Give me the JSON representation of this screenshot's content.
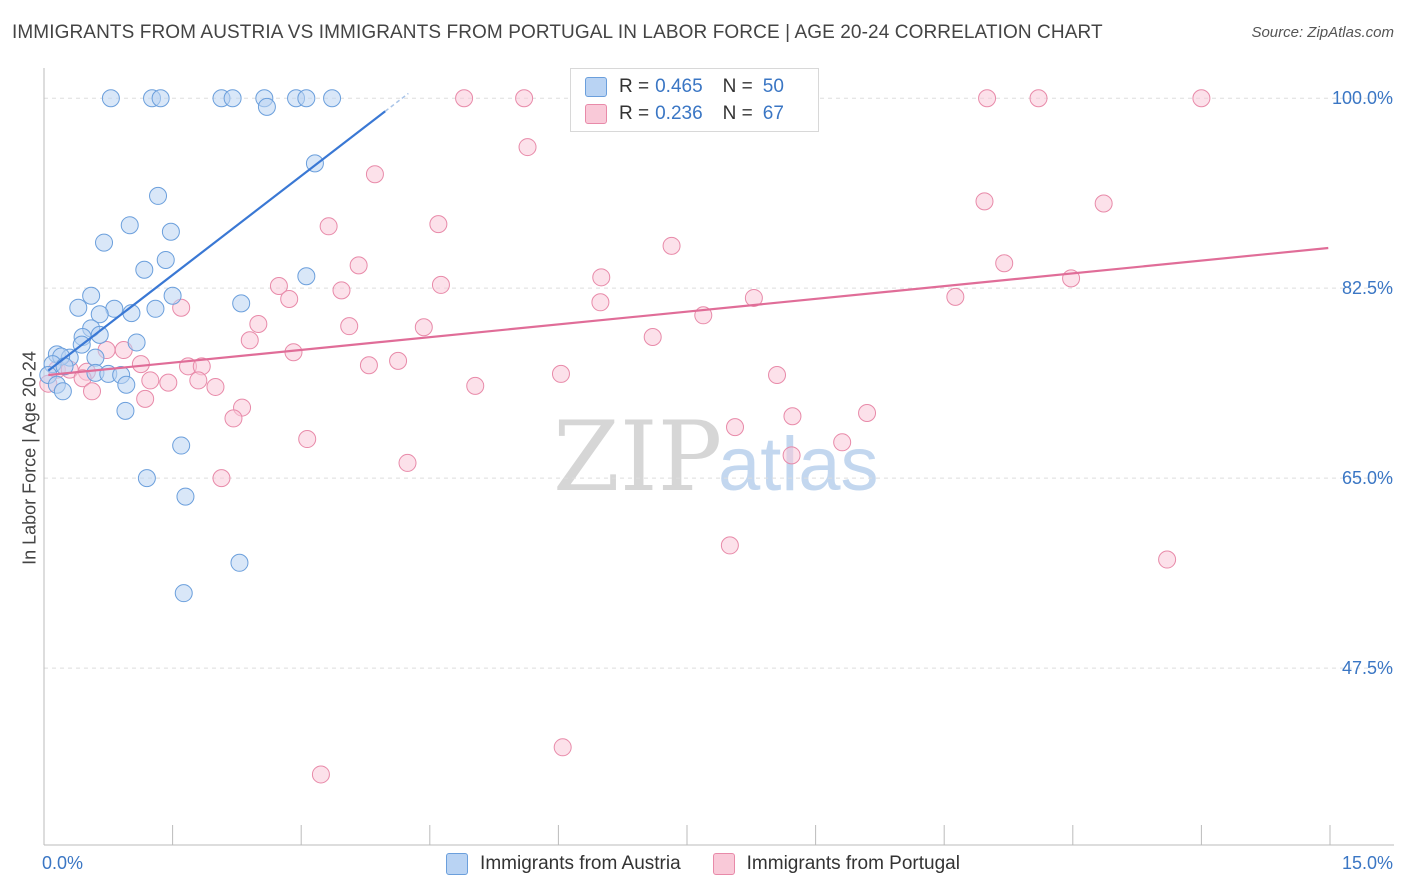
{
  "title": "IMMIGRANTS FROM AUSTRIA VS IMMIGRANTS FROM PORTUGAL IN LABOR FORCE | AGE 20-24 CORRELATION CHART",
  "source": "Source: ZipAtlas.com",
  "watermark": {
    "zip": "ZIP",
    "atlas": "atlas"
  },
  "legend_top": {
    "rows": [
      {
        "r_label": "R =",
        "r_value": "0.465",
        "n_label": "N =",
        "n_value": "50"
      },
      {
        "r_label": "R =",
        "r_value": "0.236",
        "n_label": "N =",
        "n_value": "67"
      }
    ]
  },
  "legend_bottom": [
    {
      "label": "Immigrants from Austria"
    },
    {
      "label": "Immigrants from Portugal"
    }
  ],
  "chart_data": {
    "type": "scatter",
    "title": "IMMIGRANTS FROM AUSTRIA VS IMMIGRANTS FROM PORTUGAL IN LABOR FORCE | AGE 20-24 CORRELATION CHART",
    "xlabel": "",
    "ylabel": "In Labor Force | Age 20-24",
    "xlim": [
      0,
      15
    ],
    "ylim": [
      31.2,
      102.6
    ],
    "x_tick_labels": [
      "0.0%",
      "15.0%"
    ],
    "y_ticks": [
      47.5,
      65.0,
      82.5,
      100.0
    ],
    "y_tick_labels": [
      "47.5%",
      "65.0%",
      "82.5%",
      "100.0%"
    ],
    "colors": {
      "austria": "#6b9fdc",
      "austria_fill": "#b9d3f3",
      "portugal": "#e88aa9",
      "portugal_fill": "#f9c9d8",
      "austria_line": "#3a78d4",
      "portugal_line": "#e06d98"
    },
    "series": [
      {
        "name": "Immigrants from Austria",
        "trend": {
          "x1": 0.05,
          "y1": 74.9,
          "x2": 3.98,
          "y2": 98.8,
          "x_dash_end": 4.25
        },
        "points": [
          [
            0.78,
            100.0
          ],
          [
            1.26,
            100.0
          ],
          [
            1.36,
            100.0
          ],
          [
            2.07,
            100.0
          ],
          [
            2.2,
            100.0
          ],
          [
            2.57,
            100.0
          ],
          [
            2.94,
            100.0
          ],
          [
            3.06,
            100.0
          ],
          [
            3.36,
            100.0
          ],
          [
            2.6,
            99.2
          ],
          [
            3.16,
            94.0
          ],
          [
            1.33,
            91.0
          ],
          [
            1.0,
            88.3
          ],
          [
            1.48,
            87.7
          ],
          [
            0.7,
            86.7
          ],
          [
            1.42,
            85.1
          ],
          [
            1.17,
            84.2
          ],
          [
            3.06,
            83.6
          ],
          [
            0.55,
            81.8
          ],
          [
            1.5,
            81.8
          ],
          [
            0.4,
            80.7
          ],
          [
            0.82,
            80.6
          ],
          [
            1.3,
            80.6
          ],
          [
            2.3,
            81.1
          ],
          [
            0.65,
            80.1
          ],
          [
            1.02,
            80.2
          ],
          [
            0.55,
            78.8
          ],
          [
            0.65,
            78.2
          ],
          [
            0.45,
            78.0
          ],
          [
            1.08,
            77.5
          ],
          [
            0.44,
            77.3
          ],
          [
            0.15,
            76.4
          ],
          [
            0.3,
            76.1
          ],
          [
            0.6,
            76.1
          ],
          [
            0.2,
            76.2
          ],
          [
            0.1,
            75.5
          ],
          [
            0.24,
            75.3
          ],
          [
            0.6,
            74.7
          ],
          [
            0.75,
            74.6
          ],
          [
            0.9,
            74.5
          ],
          [
            0.05,
            74.5
          ],
          [
            0.15,
            73.6
          ],
          [
            0.96,
            73.6
          ],
          [
            0.22,
            73.0
          ],
          [
            0.95,
            71.2
          ],
          [
            1.6,
            68.0
          ],
          [
            1.2,
            65.0
          ],
          [
            1.65,
            63.3
          ],
          [
            2.28,
            57.2
          ],
          [
            1.63,
            54.4
          ]
        ]
      },
      {
        "name": "Immigrants from Portugal",
        "trend": {
          "x1": 0.05,
          "y1": 74.5,
          "x2": 14.98,
          "y2": 86.2
        },
        "points": [
          [
            4.9,
            100.0
          ],
          [
            5.6,
            100.0
          ],
          [
            6.4,
            100.0
          ],
          [
            11.0,
            100.0
          ],
          [
            11.6,
            100.0
          ],
          [
            13.5,
            100.0
          ],
          [
            5.64,
            95.5
          ],
          [
            3.86,
            93.0
          ],
          [
            10.97,
            90.5
          ],
          [
            12.36,
            90.3
          ],
          [
            3.32,
            88.2
          ],
          [
            4.6,
            88.4
          ],
          [
            7.32,
            86.4
          ],
          [
            3.67,
            84.6
          ],
          [
            11.2,
            84.8
          ],
          [
            11.98,
            83.4
          ],
          [
            6.5,
            83.5
          ],
          [
            4.63,
            82.8
          ],
          [
            2.74,
            82.7
          ],
          [
            3.47,
            82.3
          ],
          [
            2.86,
            81.5
          ],
          [
            6.49,
            81.2
          ],
          [
            8.28,
            81.6
          ],
          [
            10.63,
            81.7
          ],
          [
            1.6,
            80.7
          ],
          [
            7.69,
            80.0
          ],
          [
            2.5,
            79.2
          ],
          [
            3.56,
            79.0
          ],
          [
            4.43,
            78.9
          ],
          [
            7.1,
            78.0
          ],
          [
            2.4,
            77.7
          ],
          [
            0.73,
            76.8
          ],
          [
            0.93,
            76.8
          ],
          [
            2.91,
            76.6
          ],
          [
            1.13,
            75.5
          ],
          [
            1.68,
            75.3
          ],
          [
            1.84,
            75.3
          ],
          [
            3.79,
            75.4
          ],
          [
            4.13,
            75.8
          ],
          [
            0.15,
            75.0
          ],
          [
            0.3,
            75.0
          ],
          [
            0.5,
            74.8
          ],
          [
            6.03,
            74.6
          ],
          [
            8.55,
            74.5
          ],
          [
            0.45,
            74.2
          ],
          [
            1.24,
            74.0
          ],
          [
            1.45,
            73.8
          ],
          [
            0.05,
            73.7
          ],
          [
            2.0,
            73.4
          ],
          [
            5.03,
            73.5
          ],
          [
            0.56,
            73.0
          ],
          [
            1.18,
            72.3
          ],
          [
            2.31,
            71.5
          ],
          [
            2.21,
            70.5
          ],
          [
            9.6,
            71.0
          ],
          [
            8.73,
            70.7
          ],
          [
            8.06,
            69.7
          ],
          [
            3.07,
            68.6
          ],
          [
            9.31,
            68.3
          ],
          [
            8.72,
            67.1
          ],
          [
            4.24,
            66.4
          ],
          [
            2.07,
            65.0
          ],
          [
            8.0,
            58.8
          ],
          [
            13.1,
            57.5
          ],
          [
            6.05,
            40.2
          ],
          [
            3.23,
            37.7
          ],
          [
            1.8,
            74.0
          ]
        ]
      }
    ]
  }
}
